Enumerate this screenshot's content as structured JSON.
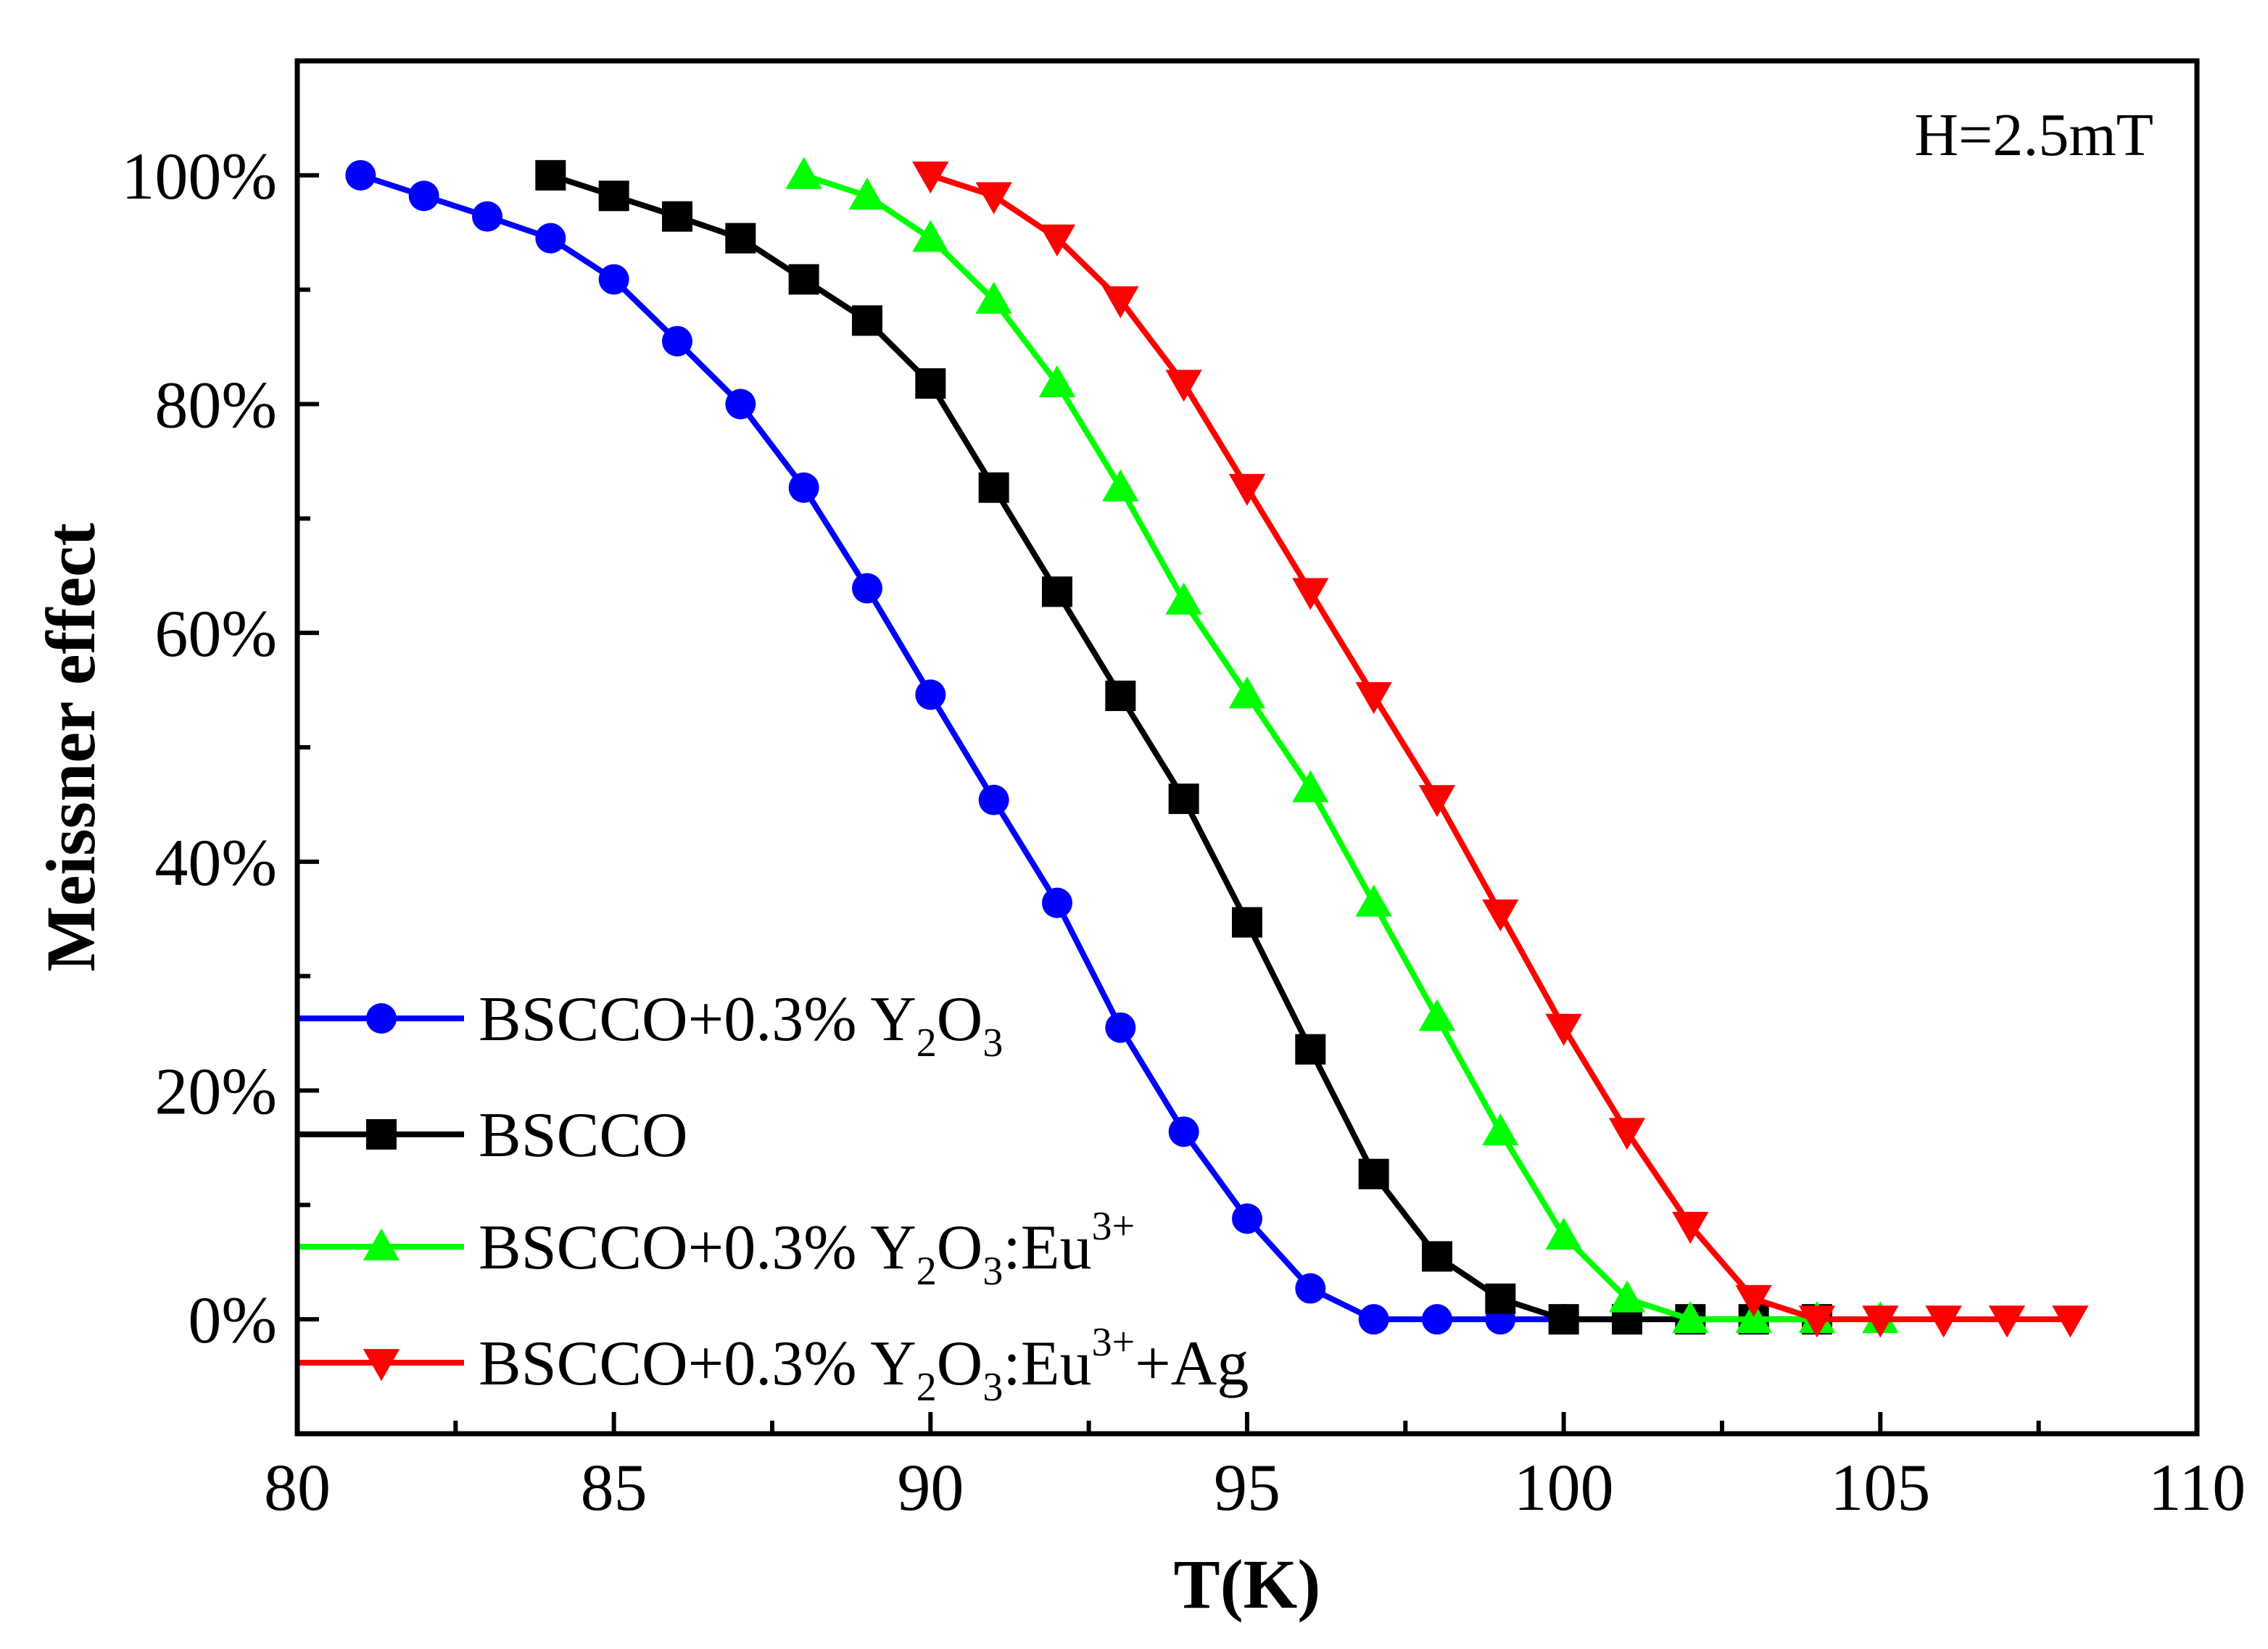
{
  "chart_data": {
    "type": "line",
    "title": "",
    "xlabel": "T(K)",
    "ylabel": "Meissner effect",
    "xlim": [
      80,
      110
    ],
    "ylim": [
      -10,
      110
    ],
    "x_ticks": [
      80,
      85,
      90,
      95,
      100,
      105,
      110
    ],
    "x_tick_labels": [
      "80",
      "85",
      "90",
      "95",
      "100",
      "105",
      "110"
    ],
    "y_ticks": [
      0,
      20,
      40,
      60,
      80,
      100
    ],
    "y_tick_labels": [
      "0%",
      "20%",
      "40%",
      "60%",
      "80%",
      "100%"
    ],
    "grid": false,
    "legend_position": "bottom-left",
    "annotation": "H=2.5mT",
    "series": [
      {
        "name": "BSCCO+0.3% Y2O3",
        "legend_parts": {
          "base": "BSCCO+0.3% Y",
          "sub1": "2",
          "mid": "O",
          "sub2": "3",
          "post": "",
          "sup": "",
          "tail": ""
        },
        "color": "#0000ff",
        "marker": "circle",
        "x": [
          81,
          82,
          83,
          84,
          85,
          86,
          87,
          88,
          89,
          90,
          91,
          92,
          93,
          94,
          95,
          96,
          97,
          98,
          99,
          100,
          101
        ],
        "y": [
          100,
          98.2,
          96.4,
          94.5,
          90.9,
          85.5,
          80.0,
          72.7,
          63.9,
          54.6,
          45.4,
          36.4,
          25.5,
          16.4,
          8.8,
          2.7,
          0,
          0,
          0,
          0,
          0
        ]
      },
      {
        "name": "BSCCO",
        "legend_parts": {
          "base": "BSCCO",
          "sub1": "",
          "mid": "",
          "sub2": "",
          "post": "",
          "sup": "",
          "tail": ""
        },
        "color": "#000000",
        "marker": "square",
        "x": [
          84,
          85,
          86,
          87,
          88,
          89,
          90,
          91,
          92,
          93,
          94,
          95,
          96,
          97,
          98,
          99,
          100,
          101,
          102,
          103,
          104
        ],
        "y": [
          100,
          98.2,
          96.4,
          94.5,
          90.9,
          87.3,
          81.8,
          72.7,
          63.6,
          54.5,
          45.5,
          34.7,
          23.6,
          12.7,
          5.5,
          1.8,
          0,
          0,
          0,
          0,
          0
        ]
      },
      {
        "name": "BSCCO+0.3% Y2O3:Eu3+",
        "legend_parts": {
          "base": "BSCCO+0.3% Y",
          "sub1": "2",
          "mid": "O",
          "sub2": "3",
          "post": ":Eu",
          "sup": "3+",
          "tail": ""
        },
        "color": "#00ff00",
        "marker": "triangle-up",
        "x": [
          88,
          89,
          90,
          91,
          92,
          93,
          94,
          95,
          96,
          97,
          98,
          99,
          100,
          101,
          102,
          103,
          104,
          105
        ],
        "y": [
          100,
          98.2,
          94.5,
          89.1,
          81.8,
          72.7,
          62.8,
          54.6,
          46.4,
          36.4,
          26.4,
          16.4,
          7.3,
          1.8,
          0,
          0,
          0,
          0
        ]
      },
      {
        "name": "BSCCO+0.3% Y2O3:Eu3++Ag",
        "legend_parts": {
          "base": "BSCCO+0.3% Y",
          "sub1": "2",
          "mid": "O",
          "sub2": "3",
          "post": ":Eu",
          "sup": "3+",
          "tail": "+Ag"
        },
        "color": "#ff0000",
        "marker": "triangle-down",
        "x": [
          90,
          91,
          92,
          93,
          94,
          95,
          96,
          97,
          98,
          99,
          100,
          101,
          102,
          103,
          104,
          105,
          106,
          107,
          108
        ],
        "y": [
          100,
          98.2,
          94.5,
          89.1,
          81.8,
          72.7,
          63.6,
          54.5,
          45.5,
          35.5,
          25.5,
          16.4,
          8.2,
          1.8,
          0,
          0,
          0,
          0,
          0
        ]
      }
    ]
  }
}
